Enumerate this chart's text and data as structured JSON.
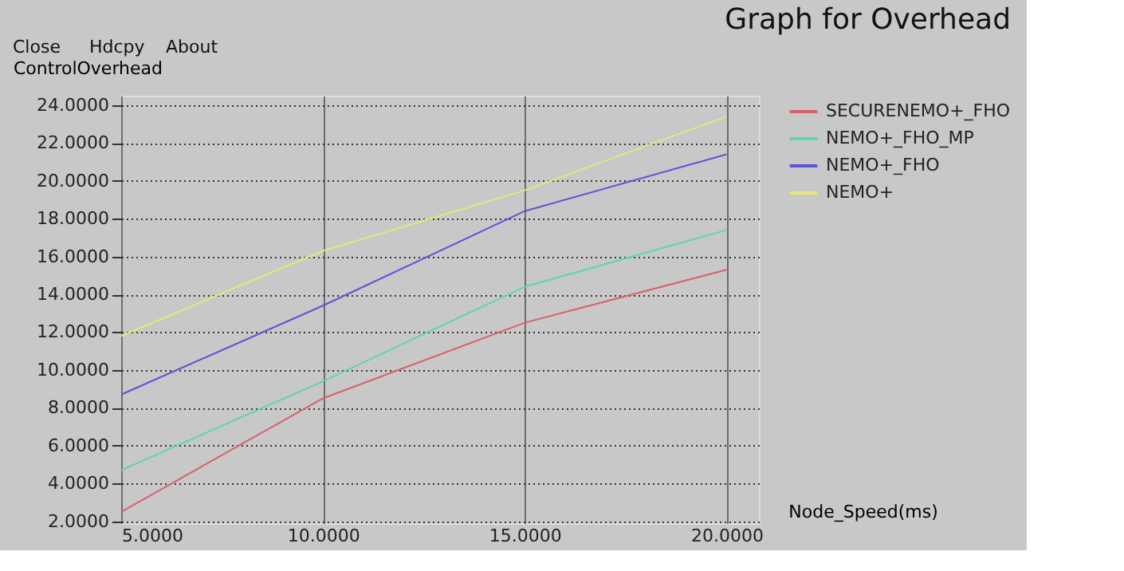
{
  "chart_data": {
    "type": "line",
    "title": "Graph for Overhead",
    "xlabel": "Node_Speed(ms)",
    "ylabel": "ControlOverhead",
    "annotations": [
      "Close",
      "Hdcpy",
      "About"
    ],
    "x": [
      5,
      10,
      15,
      20
    ],
    "series": [
      {
        "name": "SECURENEMO+_FHO",
        "color": "#d9606a",
        "values": [
          2.5,
          8.5,
          12.5,
          15.3
        ]
      },
      {
        "name": "NEMO+_FHO_MP",
        "color": "#5fd6a6",
        "values": [
          4.7,
          9.4,
          14.4,
          17.4
        ]
      },
      {
        "name": "NEMO+_FHO",
        "color": "#5a55d8",
        "values": [
          8.7,
          13.4,
          18.4,
          21.4
        ]
      },
      {
        "name": "NEMO+",
        "color": "#e6e67a",
        "values": [
          11.8,
          16.3,
          19.5,
          23.4
        ]
      }
    ],
    "xlim": [
      5,
      20.8
    ],
    "ylim": [
      1.9,
      24.5
    ],
    "xticks": [
      {
        "value": 5,
        "label": "5.0000"
      },
      {
        "value": 10,
        "label": "10.0000"
      },
      {
        "value": 15,
        "label": "15.0000"
      },
      {
        "value": 20,
        "label": "20.0000"
      }
    ],
    "yticks": [
      {
        "value": 2,
        "label": "2.0000"
      },
      {
        "value": 4,
        "label": "4.0000"
      },
      {
        "value": 6,
        "label": "6.0000"
      },
      {
        "value": 8,
        "label": "8.0000"
      },
      {
        "value": 10,
        "label": "10.0000"
      },
      {
        "value": 12,
        "label": "12.0000"
      },
      {
        "value": 14,
        "label": "14.0000"
      },
      {
        "value": 16,
        "label": "16.0000"
      },
      {
        "value": 18,
        "label": "18.0000"
      },
      {
        "value": 20,
        "label": "20.0000"
      },
      {
        "value": 22,
        "label": "22.0000"
      },
      {
        "value": 24,
        "label": "24.0000"
      }
    ],
    "grid": true,
    "legend": "top right",
    "marker": "none",
    "line_style": "solid"
  }
}
